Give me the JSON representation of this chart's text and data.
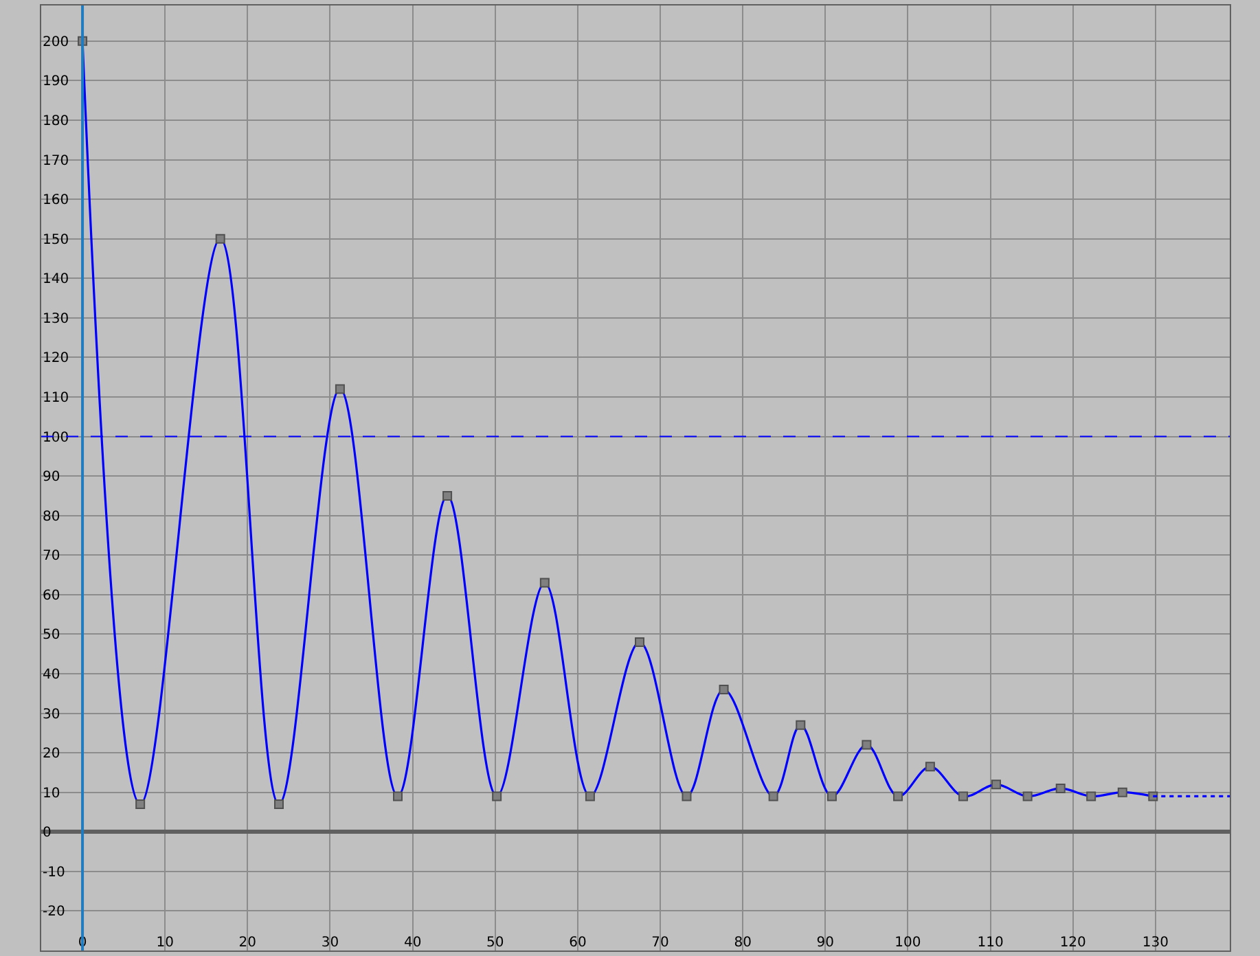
{
  "chart_data": {
    "type": "line",
    "x": [
      0,
      7,
      16.7,
      23.8,
      31.2,
      38.2,
      44.2,
      50.2,
      56,
      61.5,
      67.5,
      73.2,
      77.7,
      83.7,
      87,
      90.8,
      95,
      98.8,
      102.7,
      106.7,
      110.7,
      114.5,
      118.5,
      122.2,
      126,
      129.7
    ],
    "series": [
      {
        "color": "#0000ff",
        "marker": "square",
        "line_style": "solid",
        "values": [
          200,
          7,
          150,
          7,
          112,
          9,
          85,
          9,
          63,
          9,
          48,
          9,
          36,
          9,
          27,
          9,
          22,
          9,
          16.5,
          9,
          12,
          9,
          11,
          9,
          10,
          9
        ]
      },
      {
        "color": "#0000ff",
        "marker": "none",
        "line_style": "dotted",
        "x": [
          129.7,
          139
        ],
        "values": [
          9,
          9
        ]
      }
    ],
    "xlim": [
      -5,
      139
    ],
    "xticks": [
      0,
      10,
      20,
      30,
      40,
      50,
      60,
      70,
      80,
      90,
      100,
      110,
      120,
      130
    ],
    "ylim": [
      -30,
      209
    ],
    "yticks": [
      -20,
      -10,
      0,
      10,
      20,
      30,
      40,
      50,
      60,
      70,
      80,
      90,
      100,
      110,
      120,
      130,
      140,
      150,
      160,
      170,
      180,
      190,
      200
    ],
    "grid": true,
    "ref_lines": [
      {
        "axis": "y",
        "value": 100,
        "color": "#0000ff",
        "line_style": "dashed"
      },
      {
        "axis": "x",
        "value": 0,
        "color": "#1e7cc0",
        "line_style": "solid"
      }
    ]
  }
}
